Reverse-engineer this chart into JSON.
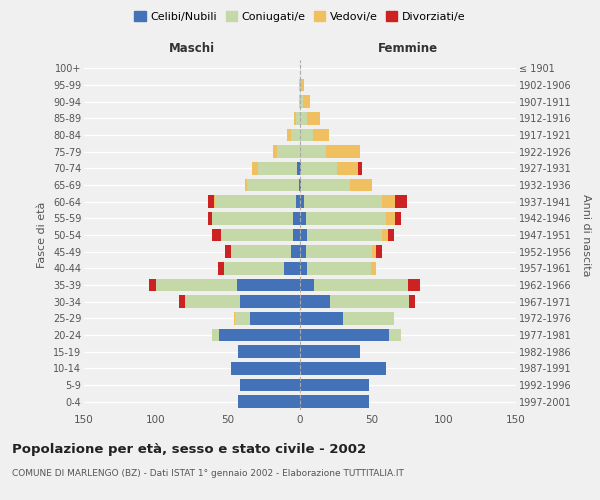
{
  "age_groups": [
    "0-4",
    "5-9",
    "10-14",
    "15-19",
    "20-24",
    "25-29",
    "30-34",
    "35-39",
    "40-44",
    "45-49",
    "50-54",
    "55-59",
    "60-64",
    "65-69",
    "70-74",
    "75-79",
    "80-84",
    "85-89",
    "90-94",
    "95-99",
    "100+"
  ],
  "birth_years": [
    "1997-2001",
    "1992-1996",
    "1987-1991",
    "1982-1986",
    "1977-1981",
    "1972-1976",
    "1967-1971",
    "1962-1966",
    "1957-1961",
    "1952-1956",
    "1947-1951",
    "1942-1946",
    "1937-1941",
    "1932-1936",
    "1927-1931",
    "1922-1926",
    "1917-1921",
    "1912-1916",
    "1907-1911",
    "1902-1906",
    "≤ 1901"
  ],
  "males": {
    "celibi": [
      43,
      42,
      48,
      43,
      56,
      35,
      42,
      44,
      11,
      6,
      5,
      5,
      3,
      1,
      2,
      0,
      0,
      0,
      0,
      0,
      0
    ],
    "coniugati": [
      0,
      0,
      0,
      0,
      5,
      10,
      38,
      56,
      42,
      42,
      50,
      56,
      56,
      36,
      27,
      16,
      6,
      3,
      1,
      1,
      0
    ],
    "vedovi": [
      0,
      0,
      0,
      0,
      0,
      1,
      0,
      0,
      0,
      0,
      0,
      0,
      1,
      1,
      4,
      3,
      3,
      1,
      0,
      0,
      0
    ],
    "divorziati": [
      0,
      0,
      0,
      0,
      0,
      0,
      4,
      5,
      4,
      4,
      6,
      3,
      4,
      0,
      0,
      0,
      0,
      0,
      0,
      0,
      0
    ]
  },
  "females": {
    "nubili": [
      48,
      48,
      60,
      42,
      62,
      30,
      21,
      10,
      5,
      4,
      5,
      4,
      3,
      1,
      1,
      0,
      0,
      0,
      0,
      0,
      0
    ],
    "coniugate": [
      0,
      0,
      0,
      0,
      8,
      35,
      55,
      65,
      44,
      46,
      52,
      56,
      54,
      34,
      25,
      18,
      9,
      5,
      2,
      1,
      0
    ],
    "vedove": [
      0,
      0,
      0,
      0,
      0,
      0,
      0,
      0,
      4,
      3,
      4,
      6,
      9,
      15,
      14,
      24,
      11,
      9,
      5,
      2,
      0
    ],
    "divorziate": [
      0,
      0,
      0,
      0,
      0,
      0,
      4,
      8,
      0,
      4,
      4,
      4,
      8,
      0,
      3,
      0,
      0,
      0,
      0,
      0,
      0
    ]
  },
  "colors": {
    "celibi": "#4472b8",
    "coniugati": "#c5d9a8",
    "vedovi": "#f0c060",
    "divorziati": "#cc2222"
  },
  "xlim": 150,
  "title": "Popolazione per età, sesso e stato civile - 2002",
  "subtitle": "COMUNE DI MARLENGO (BZ) - Dati ISTAT 1° gennaio 2002 - Elaborazione TUTTITALIA.IT",
  "ylabel_left": "Fasce di età",
  "ylabel_right": "Anni di nascita",
  "header_left": "Maschi",
  "header_right": "Femmine",
  "legend_labels": [
    "Celibi/Nubili",
    "Coniugati/e",
    "Vedovi/e",
    "Divorziati/e"
  ],
  "background_color": "#f0f0f0",
  "grid_color": "#ffffff",
  "text_color": "#555555"
}
